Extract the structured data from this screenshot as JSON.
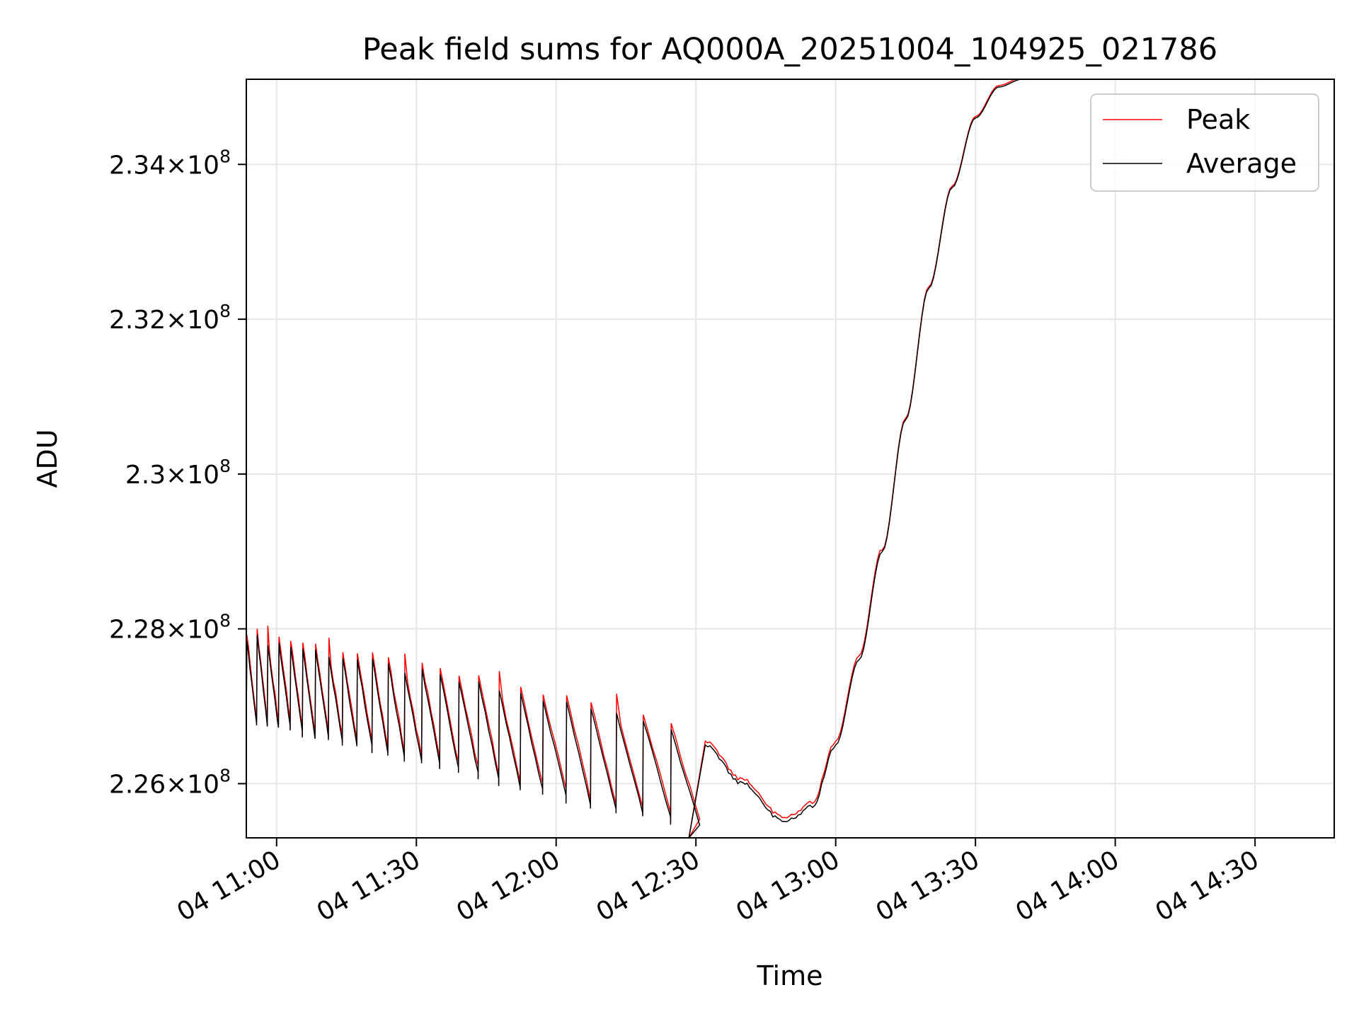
{
  "chart_data": {
    "type": "line",
    "title": "Peak field sums for AQ000A_20251004_104925_021786",
    "xlabel": "Time",
    "ylabel": "ADU",
    "x_unit": "minutes since 04 10:00",
    "xlim": [
      53.5,
      287
    ],
    "ylim": [
      225.3,
      235.1
    ],
    "y_scale_note": "values in units of 1e6 ADU",
    "grid": true,
    "legend_position": "upper right",
    "x_ticks": [
      {
        "value": 60,
        "label": "04 11:00"
      },
      {
        "value": 90,
        "label": "04 11:30"
      },
      {
        "value": 120,
        "label": "04 12:00"
      },
      {
        "value": 150,
        "label": "04 12:30"
      },
      {
        "value": 180,
        "label": "04 13:00"
      },
      {
        "value": 210,
        "label": "04 13:30"
      },
      {
        "value": 240,
        "label": "04 14:00"
      },
      {
        "value": 270,
        "label": "04 14:30"
      }
    ],
    "y_ticks": [
      {
        "value": 226.0,
        "mantissa": "2.26"
      },
      {
        "value": 228.0,
        "mantissa": "2.28"
      },
      {
        "value": 230.0,
        "mantissa": "2.3"
      },
      {
        "value": 232.0,
        "mantissa": "2.32"
      },
      {
        "value": 234.0,
        "mantissa": "2.34"
      }
    ],
    "y_tick_suffix": "×10",
    "y_tick_exponent": "8",
    "series": [
      {
        "name": "Peak",
        "color": "#ff0000"
      },
      {
        "name": "Average",
        "color": "#000000"
      }
    ],
    "shape_notes": "Sawtooth oscillations 54-152 min with peaks ~228.1 declining to ~226.5 and troughs ~226.8 declining to ~225.3; recovery bump at ~152 min (226.5), minimum ~225.5 near 169 min, steep rise to saturation ~235.1 at ~200-212 min; Peak series sits slightly above Average.",
    "key_points": {
      "x": [
        53.5,
        70,
        90,
        110,
        130,
        148,
        152,
        160,
        169,
        175,
        180,
        185,
        190,
        195,
        200,
        205,
        210,
        215,
        220
      ],
      "average": [
        227.6,
        227.3,
        227.0,
        226.7,
        226.3,
        225.6,
        226.5,
        226.0,
        225.5,
        225.7,
        226.5,
        227.6,
        229.0,
        230.7,
        232.4,
        233.7,
        234.6,
        235.0,
        235.1
      ]
    }
  }
}
